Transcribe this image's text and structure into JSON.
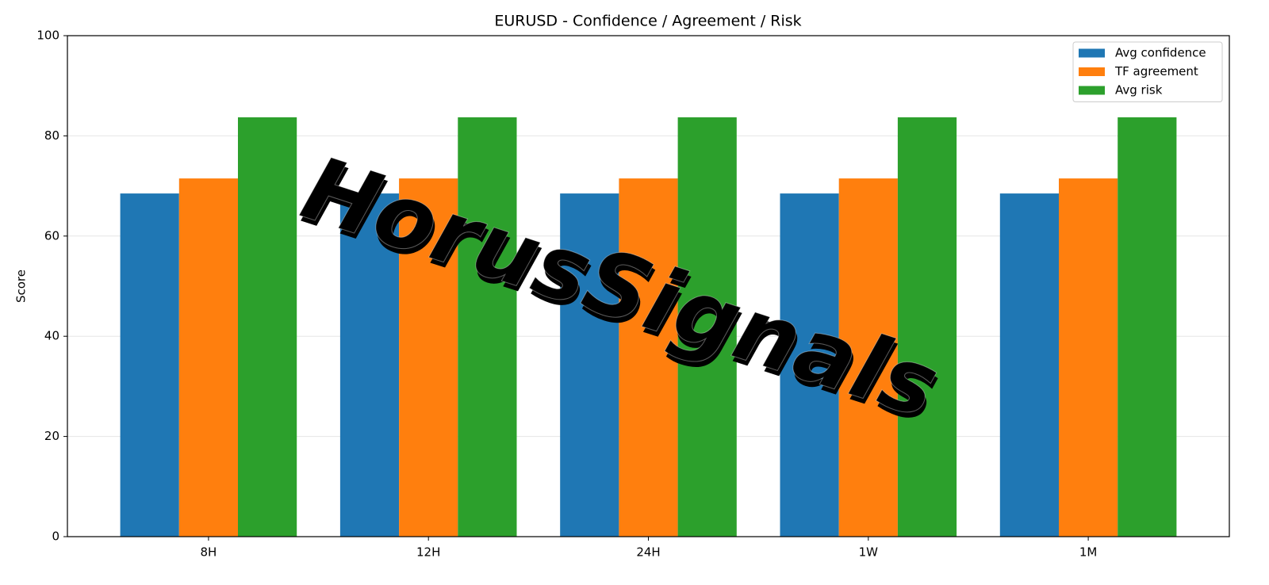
{
  "chart_data": {
    "type": "bar",
    "title": "EURUSD - Confidence / Agreement / Risk",
    "y_label": "Score",
    "watermark": "HorusSignals",
    "categories": [
      "8H",
      "12H",
      "24H",
      "1W",
      "1M"
    ],
    "series": [
      {
        "name": "Avg confidence",
        "color": "#1f77b4",
        "values": [
          68.5,
          68.5,
          68.5,
          68.5,
          68.5
        ]
      },
      {
        "name": "TF agreement",
        "color": "#ff7f0e",
        "values": [
          71.5,
          71.5,
          71.5,
          71.5,
          71.5
        ]
      },
      {
        "name": "Avg risk",
        "color": "#2ca02c",
        "values": [
          83.7,
          83.7,
          83.7,
          83.7,
          83.7
        ]
      }
    ],
    "ylim": [
      0,
      100
    ],
    "yticks": [
      0,
      20,
      40,
      60,
      80,
      100
    ],
    "grid": true,
    "legend": "upper right"
  }
}
